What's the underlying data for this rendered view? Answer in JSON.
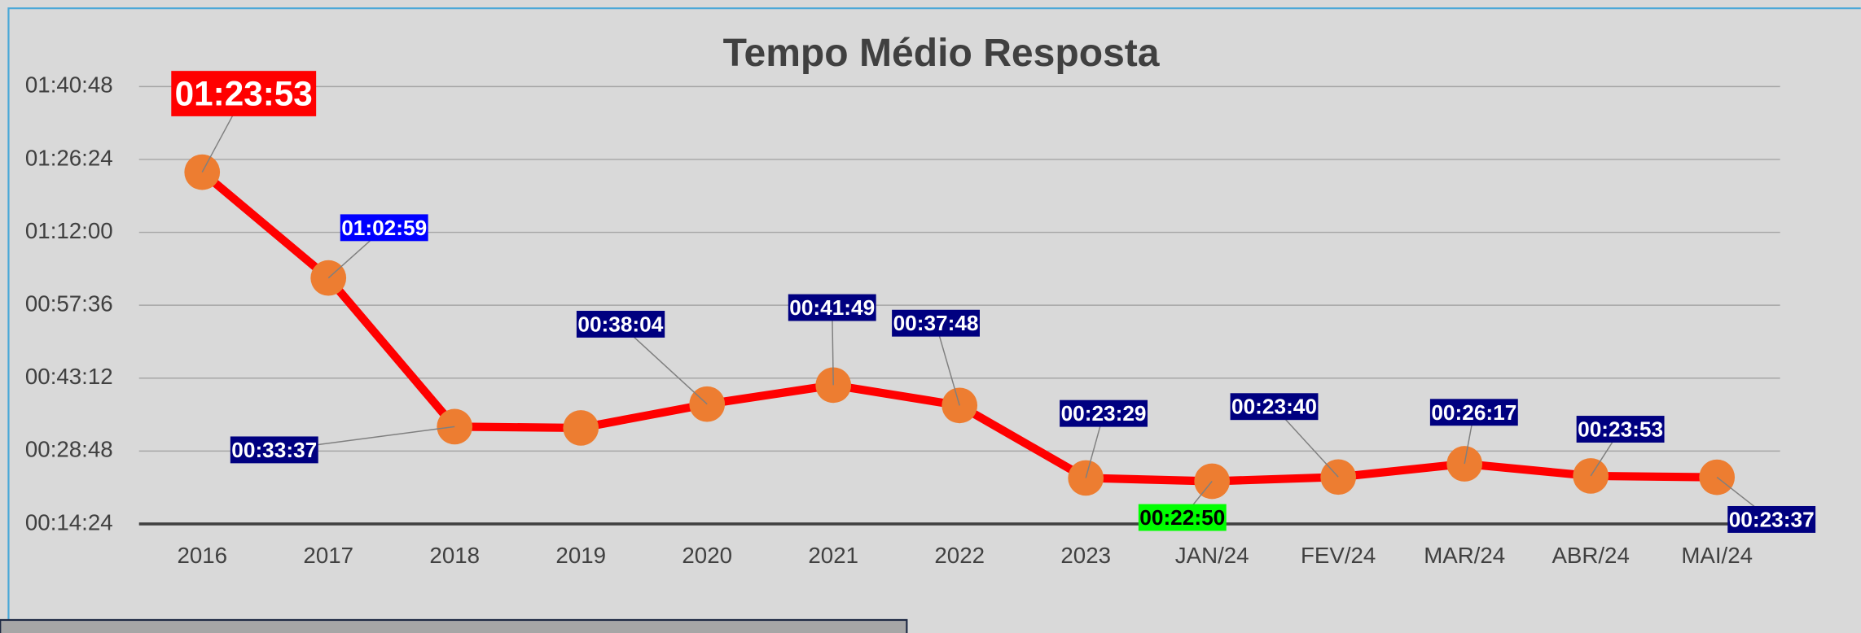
{
  "chart_data": {
    "type": "line",
    "title": "Tempo Médio Resposta",
    "categories": [
      "2016",
      "2017",
      "2018",
      "2019",
      "2020",
      "2021",
      "2022",
      "2023",
      "JAN/24",
      "FEV/24",
      "MAR/24",
      "ABR/24",
      "MAI/24"
    ],
    "series": [
      {
        "name": "Tempo Médio Resposta",
        "color": "#ff0000",
        "marker_color": "#ed7d31",
        "values": [
          5033,
          3779,
          2017,
          2002,
          2284,
          2509,
          2268,
          1409,
          1370,
          1420,
          1577,
          1433,
          1417
        ],
        "value_labels": [
          "01:23:53",
          "01:02:59",
          "00:33:37",
          null,
          "00:38:04",
          "00:41:49",
          "00:37:48",
          "00:23:29",
          "00:22:50",
          "00:23:40",
          "00:26:17",
          "00:23:53",
          "00:23:37"
        ],
        "label_colors": [
          "#ff0000",
          "#0000ff",
          "#000080",
          null,
          "#000080",
          "#000080",
          "#000080",
          "#000080",
          "#00ff00",
          "#000080",
          "#000080",
          "#000080",
          "#000080"
        ],
        "label_text_colors": [
          "#ffffff",
          "#ffffff",
          "#ffffff",
          null,
          "#ffffff",
          "#ffffff",
          "#ffffff",
          "#ffffff",
          "#000000",
          "#ffffff",
          "#ffffff",
          "#ffffff",
          "#ffffff"
        ]
      }
    ],
    "ylim": [
      864,
      6048
    ],
    "yticks": [
      {
        "value": 864,
        "label": "00:14:24"
      },
      {
        "value": 1728,
        "label": "00:28:48"
      },
      {
        "value": 2592,
        "label": "00:43:12"
      },
      {
        "value": 3456,
        "label": "00:57:36"
      },
      {
        "value": 4320,
        "label": "01:12:00"
      },
      {
        "value": 5184,
        "label": "01:26:24"
      },
      {
        "value": 6048,
        "label": "01:40:48"
      }
    ],
    "grid": true
  }
}
